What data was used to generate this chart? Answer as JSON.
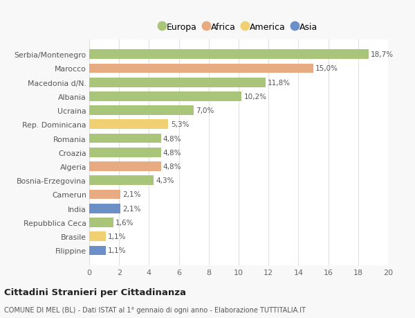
{
  "categories": [
    "Serbia/Montenegro",
    "Marocco",
    "Macedonia d/N.",
    "Albania",
    "Ucraina",
    "Rep. Dominicana",
    "Romania",
    "Croazia",
    "Algeria",
    "Bosnia-Erzegovina",
    "Camerun",
    "India",
    "Repubblica Ceca",
    "Brasile",
    "Filippine"
  ],
  "values": [
    18.7,
    15.0,
    11.8,
    10.2,
    7.0,
    5.3,
    4.8,
    4.8,
    4.8,
    4.3,
    2.1,
    2.1,
    1.6,
    1.1,
    1.1
  ],
  "continents": [
    "Europa",
    "Africa",
    "Europa",
    "Europa",
    "Europa",
    "America",
    "Europa",
    "Europa",
    "Africa",
    "Europa",
    "Africa",
    "Asia",
    "Europa",
    "America",
    "Asia"
  ],
  "colors": {
    "Europa": "#a8c57a",
    "Africa": "#e8aa80",
    "America": "#f0d070",
    "Asia": "#6b8fc7"
  },
  "legend_order": [
    "Europa",
    "Africa",
    "America",
    "Asia"
  ],
  "title": "Cittadini Stranieri per Cittadinanza",
  "subtitle": "COMUNE DI MEL (BL) - Dati ISTAT al 1° gennaio di ogni anno - Elaborazione TUTTITALIA.IT",
  "xlim": [
    0,
    20
  ],
  "xticks": [
    0,
    2,
    4,
    6,
    8,
    10,
    12,
    14,
    16,
    18,
    20
  ],
  "background_color": "#f8f8f8",
  "bar_background_color": "#ffffff",
  "grid_color": "#e0e0e0"
}
